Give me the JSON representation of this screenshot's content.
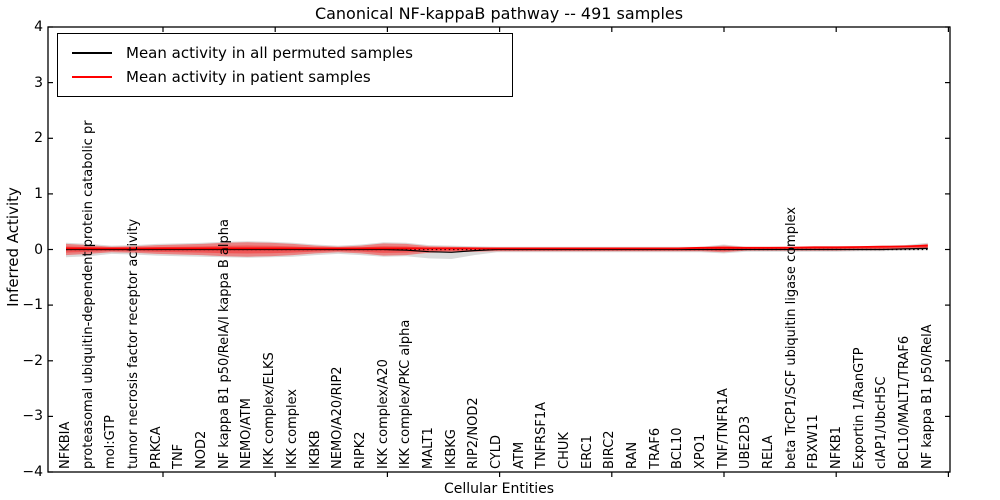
{
  "title": "Canonical NF-kappaB pathway -- 491 samples",
  "axes": {
    "ylabel": "Inferred Activity",
    "xlabel": "Cellular Entities",
    "ytick_labels": [
      "4",
      "3",
      "2",
      "1",
      "0",
      "−1",
      "−2",
      "−3",
      "−4"
    ],
    "ylim": [
      -4,
      4
    ]
  },
  "legend": {
    "items": [
      {
        "label": "Mean activity in all permuted samples",
        "color": "#000000"
      },
      {
        "label": "Mean activity in patient samples",
        "color": "#ff0000"
      }
    ]
  },
  "chart_data": {
    "type": "violin",
    "title": "Canonical NF-kappaB pathway -- 491 samples",
    "xlabel": "Cellular Entities",
    "ylabel": "Inferred Activity",
    "ylim": [
      -4,
      4
    ],
    "zero_line": true,
    "legend_position": "upper left",
    "entities": [
      "NFKBIA",
      "proteasomal ubiquitin-dependent protein catabolic pr",
      "mol:GTP",
      "tumor necrosis factor receptor activity",
      "PRKCA",
      "TNF",
      "NOD2",
      "NF kappa B1 p50/RelA/I kappa B alpha",
      "NEMO/ATM",
      "IKK complex/ELKS",
      "IKK complex",
      "IKBKB",
      "NEMO/A20/RIP2",
      "RIPK2",
      "IKK complex/A20",
      "IKK complex/PKC alpha",
      "MALT1",
      "IKBKG",
      "RIP2/NOD2",
      "CYLD",
      "ATM",
      "TNFRSF1A",
      "CHUK",
      "ERC1",
      "BIRC2",
      "RAN",
      "TRAF6",
      "BCL10",
      "XPO1",
      "TNF/TNFR1A",
      "UBE2D3",
      "RELA",
      "beta TrCP1/SCF ubiquitin ligase complex",
      "FBXW11",
      "NFKB1",
      "Exportin 1/RanGTP",
      "cIAP1/UbcH5C",
      "BCL10/MALT1/TRAF6",
      "NF kappa B1 p50/RelA"
    ],
    "series": [
      {
        "name": "Mean activity in all permuted samples",
        "color": "#000000",
        "values": [
          0,
          0,
          0,
          0,
          0,
          0,
          0,
          0,
          0,
          0,
          0,
          0,
          0,
          0,
          0,
          -0.01,
          -0.04,
          -0.05,
          -0.02,
          0,
          0,
          0,
          0,
          0,
          0,
          0,
          0,
          0,
          0,
          0,
          0,
          0,
          0,
          0,
          0,
          0,
          0,
          0.01,
          0.02
        ]
      },
      {
        "name": "Mean activity in patient samples",
        "color": "#ff0000",
        "values": [
          0.02,
          0.02,
          0.02,
          0.02,
          0.02,
          0.02,
          0.02,
          0.02,
          0.02,
          0.02,
          0.02,
          0.02,
          0.02,
          0.02,
          0.02,
          0.02,
          0.02,
          0.02,
          0.02,
          0.02,
          0.02,
          0.02,
          0.02,
          0.02,
          0.02,
          0.02,
          0.02,
          0.02,
          0.03,
          0.03,
          0.03,
          0.03,
          0.035,
          0.04,
          0.04,
          0.045,
          0.05,
          0.055,
          0.07
        ]
      }
    ],
    "bands": [
      {
        "name": "permuted samples range",
        "color": "#bbbbbb",
        "opacity": 0.55,
        "hi": [
          0.12,
          0.1,
          0.07,
          0.08,
          0.1,
          0.11,
          0.12,
          0.14,
          0.15,
          0.14,
          0.12,
          0.09,
          0.07,
          0.09,
          0.13,
          0.12,
          0.08,
          0.07,
          0.06,
          0.05,
          0.05,
          0.05,
          0.05,
          0.05,
          0.05,
          0.05,
          0.05,
          0.05,
          0.05,
          0.09,
          0.05,
          0.05,
          0.05,
          0.06,
          0.06,
          0.06,
          0.07,
          0.08,
          0.12
        ],
        "lo": [
          -0.14,
          -0.12,
          -0.08,
          -0.09,
          -0.11,
          -0.12,
          -0.13,
          -0.14,
          -0.15,
          -0.14,
          -0.13,
          -0.1,
          -0.08,
          -0.1,
          -0.13,
          -0.12,
          -0.16,
          -0.17,
          -0.1,
          -0.05,
          -0.05,
          -0.05,
          -0.05,
          -0.05,
          -0.05,
          -0.05,
          -0.05,
          -0.05,
          -0.05,
          -0.07,
          -0.04,
          -0.04,
          -0.04,
          -0.04,
          -0.04,
          -0.03,
          -0.03,
          -0.02,
          -0.01
        ]
      },
      {
        "name": "patient samples range",
        "color": "#ff0000",
        "opacity": 0.4,
        "hi": [
          0.1,
          0.08,
          0.05,
          0.06,
          0.08,
          0.09,
          0.1,
          0.12,
          0.13,
          0.12,
          0.1,
          0.07,
          0.05,
          0.07,
          0.11,
          0.1,
          0.06,
          0.05,
          0.04,
          0.03,
          0.03,
          0.03,
          0.03,
          0.03,
          0.03,
          0.03,
          0.03,
          0.03,
          0.04,
          0.07,
          0.04,
          0.04,
          0.04,
          0.05,
          0.05,
          0.05,
          0.06,
          0.06,
          0.1
        ],
        "lo": [
          -0.1,
          -0.08,
          -0.05,
          -0.06,
          -0.08,
          -0.09,
          -0.1,
          -0.12,
          -0.13,
          -0.12,
          -0.1,
          -0.07,
          -0.05,
          -0.07,
          -0.11,
          -0.1,
          -0.06,
          -0.05,
          -0.04,
          -0.03,
          -0.03,
          -0.03,
          -0.03,
          -0.03,
          -0.03,
          -0.03,
          -0.03,
          -0.03,
          -0.03,
          -0.05,
          -0.02,
          -0.02,
          -0.02,
          -0.02,
          -0.02,
          -0.01,
          -0.01,
          0.0,
          0.02
        ]
      }
    ]
  }
}
